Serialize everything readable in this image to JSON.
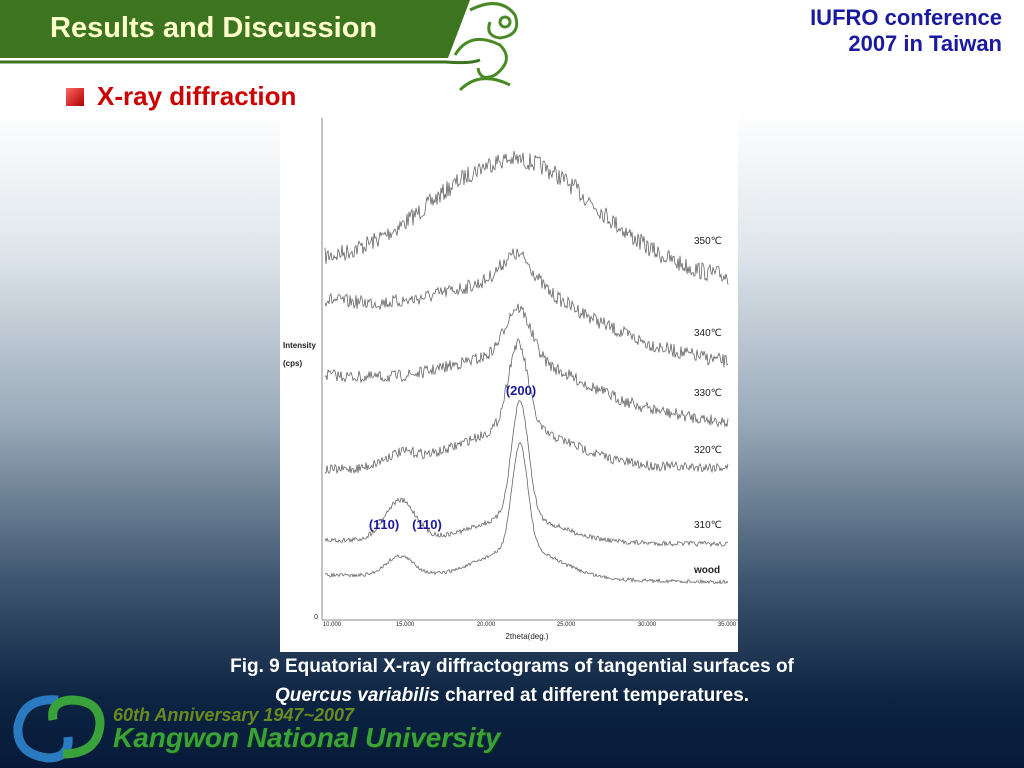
{
  "header": {
    "title": "Results and Discussion",
    "conference": [
      "IUFRO conference",
      "2007 in Taiwan"
    ]
  },
  "section": "X-ray diffraction",
  "figure": {
    "y_label": [
      "Intensity",
      "(cps)"
    ],
    "y_origin": "0",
    "x_ticks": [
      "10.000",
      "15.000",
      "20.000",
      "25.000",
      "30.000",
      "35.000"
    ],
    "x_label": "2theta(deg.)",
    "curve_labels": [
      "350℃",
      "340℃",
      "330℃",
      "320℃",
      "310℃",
      "wood"
    ],
    "annotations": [
      "(200)",
      "(1̄10)",
      "(110)"
    ]
  },
  "caption": {
    "line1": "Fig. 9 Equatorial X-ray diffractograms of tangential surfaces of",
    "species": "Quercus variabilis",
    "line2": "charred at different temperatures."
  },
  "footer": {
    "anniversary": "60th Anniversary 1947~2007",
    "university": "Kangwon National University"
  }
}
